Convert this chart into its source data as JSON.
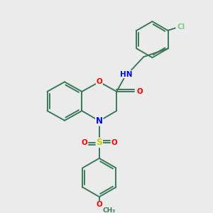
{
  "background_color": "#ebebeb",
  "bond_color": "#3a7a5a",
  "atom_colors": {
    "O": "#ff0000",
    "N": "#0000ff",
    "S": "#cccc00",
    "Cl": "#7ccd7c",
    "C": "#3a7a5a",
    "H": "#777777"
  },
  "figsize": [
    3.0,
    3.0
  ],
  "dpi": 100
}
